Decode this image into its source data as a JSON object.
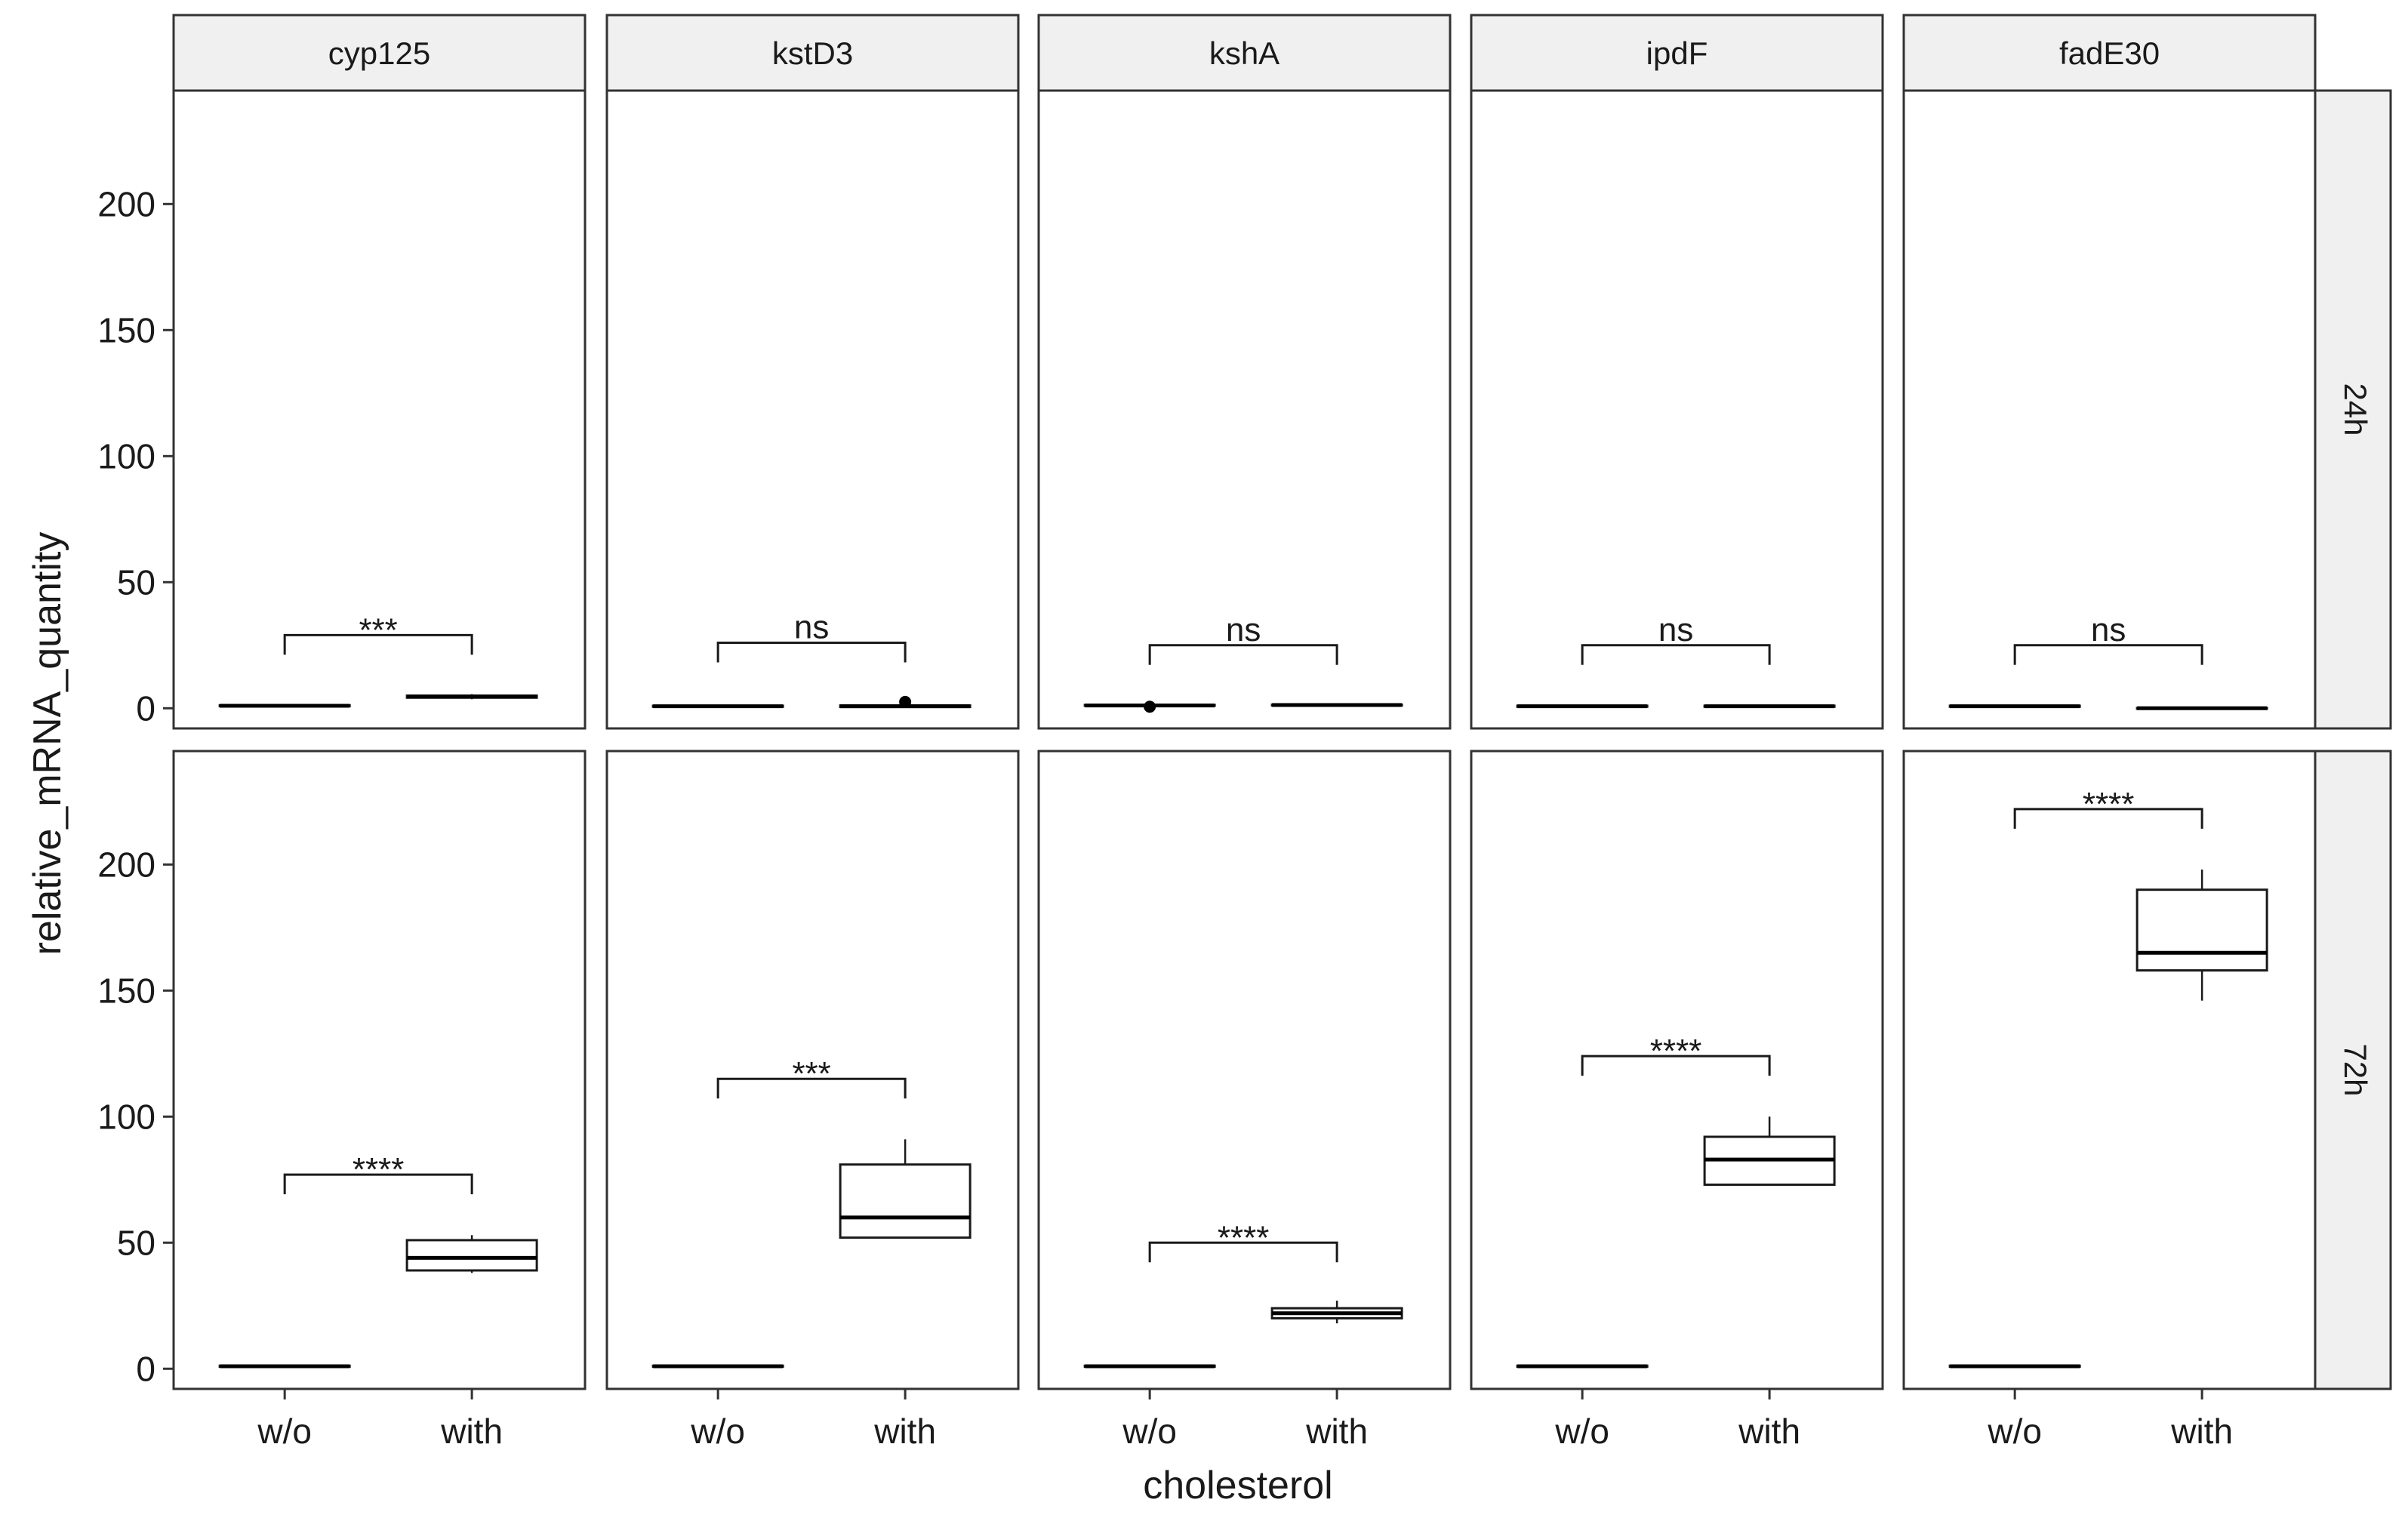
{
  "chart_data": {
    "type": "boxplot",
    "xlabel": "cholesterol",
    "ylabel": "relative_mRNA_quantity",
    "ylim": [
      -8,
      245
    ],
    "y_ticks": [
      0,
      50,
      100,
      150,
      200
    ],
    "y_tick_labels": [
      "0",
      "50",
      "100",
      "150",
      "200"
    ],
    "categories": [
      "w/o",
      "with"
    ],
    "genes": [
      "cyp125",
      "kstD3",
      "kshA",
      "ipdF",
      "fadE30"
    ],
    "timepoints": [
      "24h",
      "72h"
    ],
    "grid": false,
    "panels": [
      {
        "gene": "cyp125",
        "time": "24h",
        "significance": "***",
        "bracket_y": 29,
        "boxes": [
          {
            "group": "w/o",
            "min": 0.6,
            "q1": 0.8,
            "median": 1.0,
            "q3": 1.2,
            "max": 1.4
          },
          {
            "group": "with",
            "min": 3.6,
            "q1": 4.2,
            "median": 4.6,
            "q3": 5.0,
            "max": 5.6
          }
        ]
      },
      {
        "gene": "kstD3",
        "time": "24h",
        "significance": "ns",
        "bracket_y": 26,
        "boxes": [
          {
            "group": "w/o",
            "min": 0.4,
            "q1": 0.6,
            "median": 0.8,
            "q3": 1.0,
            "max": 1.2
          },
          {
            "group": "with",
            "min": 0.3,
            "q1": 0.5,
            "median": 0.8,
            "q3": 1.1,
            "max": 1.5,
            "outliers": [
              2.5
            ]
          }
        ]
      },
      {
        "gene": "kshA",
        "time": "24h",
        "significance": "ns",
        "bracket_y": 25,
        "boxes": [
          {
            "group": "w/o",
            "min": 0.8,
            "q1": 1.0,
            "median": 1.1,
            "q3": 1.3,
            "max": 1.5,
            "outliers": [
              0.6
            ]
          },
          {
            "group": "with",
            "min": 1.0,
            "q1": 1.2,
            "median": 1.3,
            "q3": 1.4,
            "max": 1.6
          }
        ]
      },
      {
        "gene": "ipdF",
        "time": "24h",
        "significance": "ns",
        "bracket_y": 25,
        "boxes": [
          {
            "group": "w/o",
            "min": 0.4,
            "q1": 0.6,
            "median": 0.8,
            "q3": 1.0,
            "max": 1.2
          },
          {
            "group": "with",
            "min": 0.4,
            "q1": 0.6,
            "median": 0.8,
            "q3": 1.0,
            "max": 1.2
          }
        ]
      },
      {
        "gene": "fadE30",
        "time": "24h",
        "significance": "ns",
        "bracket_y": 25,
        "boxes": [
          {
            "group": "w/o",
            "min": 0.4,
            "q1": 0.6,
            "median": 0.8,
            "q3": 1.0,
            "max": 1.2
          },
          {
            "group": "with",
            "min": -0.2,
            "q1": -0.1,
            "median": 0.0,
            "q3": 0.1,
            "max": 0.2
          }
        ]
      },
      {
        "gene": "cyp125",
        "time": "72h",
        "significance": "****",
        "bracket_y": 77,
        "boxes": [
          {
            "group": "w/o",
            "min": 0.6,
            "q1": 0.8,
            "median": 1.0,
            "q3": 1.2,
            "max": 1.4
          },
          {
            "group": "with",
            "min": 38,
            "q1": 39,
            "median": 44,
            "q3": 51,
            "max": 53
          }
        ]
      },
      {
        "gene": "kstD3",
        "time": "72h",
        "significance": "***",
        "bracket_y": 115,
        "boxes": [
          {
            "group": "w/o",
            "min": 0.6,
            "q1": 0.8,
            "median": 1.0,
            "q3": 1.2,
            "max": 1.4
          },
          {
            "group": "with",
            "min": 52,
            "q1": 52,
            "median": 60,
            "q3": 81,
            "max": 91
          }
        ]
      },
      {
        "gene": "kshA",
        "time": "72h",
        "significance": "****",
        "bracket_y": 50,
        "boxes": [
          {
            "group": "w/o",
            "min": 0.6,
            "q1": 0.8,
            "median": 1.0,
            "q3": 1.2,
            "max": 1.4
          },
          {
            "group": "with",
            "min": 18,
            "q1": 20,
            "median": 22,
            "q3": 24,
            "max": 27
          }
        ]
      },
      {
        "gene": "ipdF",
        "time": "72h",
        "significance": "****",
        "bracket_y": 124,
        "boxes": [
          {
            "group": "w/o",
            "min": 0.6,
            "q1": 0.8,
            "median": 1.0,
            "q3": 1.2,
            "max": 1.4
          },
          {
            "group": "with",
            "min": 73,
            "q1": 73,
            "median": 83,
            "q3": 92,
            "max": 100
          }
        ]
      },
      {
        "gene": "fadE30",
        "time": "72h",
        "significance": "****",
        "bracket_y": 222,
        "boxes": [
          {
            "group": "w/o",
            "min": 0.6,
            "q1": 0.8,
            "median": 1.0,
            "q3": 1.2,
            "max": 1.4
          },
          {
            "group": "with",
            "min": 146,
            "q1": 158,
            "median": 165,
            "q3": 190,
            "max": 198
          }
        ]
      }
    ]
  }
}
